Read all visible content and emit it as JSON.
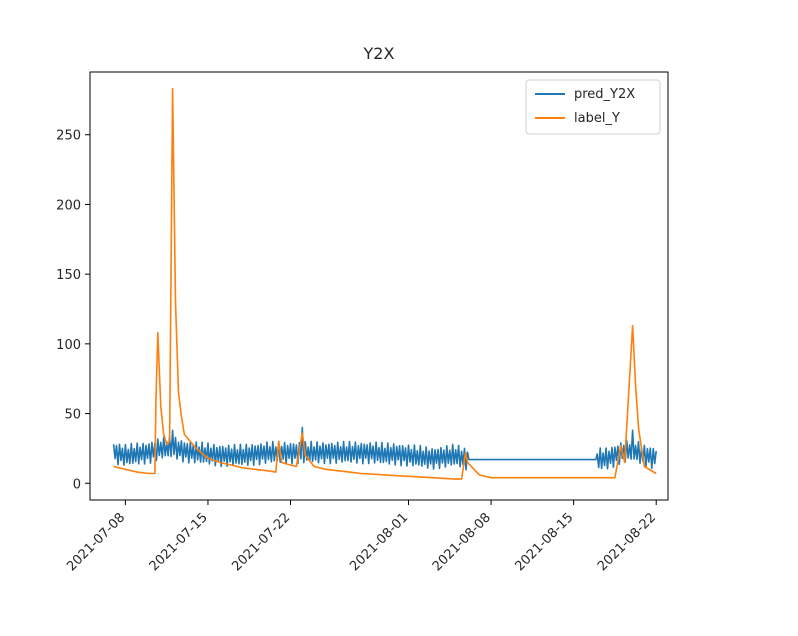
{
  "chart_data": {
    "type": "line",
    "title": "Y2X",
    "xlabel": "",
    "ylabel": "",
    "xlim": [
      "2021-07-05",
      "2021-08-23"
    ],
    "ylim": [
      -12,
      295
    ],
    "x_ticks": [
      "2021-07-08",
      "2021-07-15",
      "2021-07-22",
      "2021-08-01",
      "2021-08-08",
      "2021-08-15",
      "2021-08-22"
    ],
    "y_ticks": [
      0,
      50,
      100,
      150,
      200,
      250
    ],
    "grid": false,
    "legend_position": "top-right",
    "series": [
      {
        "name": "pred_Y2X",
        "color": "#1f77b4",
        "oscillating": true,
        "points": [
          [
            "2021-07-07",
            22
          ],
          [
            "2021-07-08",
            20
          ],
          [
            "2021-07-09",
            21
          ],
          [
            "2021-07-10",
            22
          ],
          [
            "2021-07-11",
            25
          ],
          [
            "2021-07-12",
            26
          ],
          [
            "2021-07-13",
            23
          ],
          [
            "2021-07-14",
            22
          ],
          [
            "2021-07-15",
            21
          ],
          [
            "2021-07-16",
            20
          ],
          [
            "2021-07-17",
            20
          ],
          [
            "2021-07-18",
            20
          ],
          [
            "2021-07-19",
            21
          ],
          [
            "2021-07-20",
            22
          ],
          [
            "2021-07-21",
            22
          ],
          [
            "2021-07-22",
            22
          ],
          [
            "2021-07-23",
            22
          ],
          [
            "2021-07-24",
            22
          ],
          [
            "2021-07-25",
            22
          ],
          [
            "2021-07-26",
            22
          ],
          [
            "2021-07-27",
            22
          ],
          [
            "2021-07-28",
            22
          ],
          [
            "2021-07-29",
            22
          ],
          [
            "2021-07-30",
            21
          ],
          [
            "2021-07-31",
            21
          ],
          [
            "2021-08-01",
            20
          ],
          [
            "2021-08-02",
            19
          ],
          [
            "2021-08-03",
            18
          ],
          [
            "2021-08-04",
            19
          ],
          [
            "2021-08-05",
            20
          ],
          [
            "2021-08-06",
            17
          ],
          [
            "2021-08-17",
            17
          ],
          [
            "2021-08-18",
            18
          ],
          [
            "2021-08-19",
            22
          ],
          [
            "2021-08-20",
            24
          ],
          [
            "2021-08-21",
            20
          ],
          [
            "2021-08-22",
            18
          ]
        ],
        "spikes": [
          [
            "2021-07-23",
            40
          ],
          [
            "2021-07-12",
            38
          ],
          [
            "2021-08-20",
            38
          ]
        ]
      },
      {
        "name": "label_Y",
        "color": "#ff7f0e",
        "oscillating": false,
        "points": [
          [
            "2021-07-07",
            12
          ],
          [
            "2021-07-08",
            10
          ],
          [
            "2021-07-09",
            8
          ],
          [
            "2021-07-10",
            7
          ],
          [
            "2021-07-10T12:00",
            7
          ],
          [
            "2021-07-10T14:00",
            58
          ],
          [
            "2021-07-10T18:00",
            108
          ],
          [
            "2021-07-11",
            55
          ],
          [
            "2021-07-11T06:00",
            35
          ],
          [
            "2021-07-11T12:00",
            28
          ],
          [
            "2021-07-11T18:00",
            30
          ],
          [
            "2021-07-12T00:00",
            283
          ],
          [
            "2021-07-12T06:00",
            130
          ],
          [
            "2021-07-12T12:00",
            65
          ],
          [
            "2021-07-12T18:00",
            48
          ],
          [
            "2021-07-13",
            35
          ],
          [
            "2021-07-14",
            25
          ],
          [
            "2021-07-15",
            18
          ],
          [
            "2021-07-16",
            15
          ],
          [
            "2021-07-17",
            13
          ],
          [
            "2021-07-18",
            11
          ],
          [
            "2021-07-19",
            10
          ],
          [
            "2021-07-20",
            9
          ],
          [
            "2021-07-20T18:00",
            8
          ],
          [
            "2021-07-21",
            30
          ],
          [
            "2021-07-21T06:00",
            15
          ],
          [
            "2021-07-22",
            13
          ],
          [
            "2021-07-22T12:00",
            12
          ],
          [
            "2021-07-23",
            36
          ],
          [
            "2021-07-23T06:00",
            20
          ],
          [
            "2021-07-24",
            12
          ],
          [
            "2021-07-25",
            10
          ],
          [
            "2021-07-26",
            9
          ],
          [
            "2021-07-27",
            8
          ],
          [
            "2021-07-28",
            7
          ],
          [
            "2021-07-30",
            6
          ],
          [
            "2021-08-01",
            5
          ],
          [
            "2021-08-03",
            4
          ],
          [
            "2021-08-05",
            3
          ],
          [
            "2021-08-05T12:00",
            3
          ],
          [
            "2021-08-05T20:00",
            22
          ],
          [
            "2021-08-06",
            15
          ],
          [
            "2021-08-07",
            6
          ],
          [
            "2021-08-08",
            4
          ],
          [
            "2021-08-12",
            4
          ],
          [
            "2021-08-18",
            4
          ],
          [
            "2021-08-18T12:00",
            4
          ],
          [
            "2021-08-19",
            27
          ],
          [
            "2021-08-19T08:00",
            15
          ],
          [
            "2021-08-20",
            113
          ],
          [
            "2021-08-20T06:00",
            70
          ],
          [
            "2021-08-20T12:00",
            40
          ],
          [
            "2021-08-20T18:00",
            25
          ],
          [
            "2021-08-21",
            12
          ],
          [
            "2021-08-22",
            7
          ]
        ]
      }
    ]
  }
}
